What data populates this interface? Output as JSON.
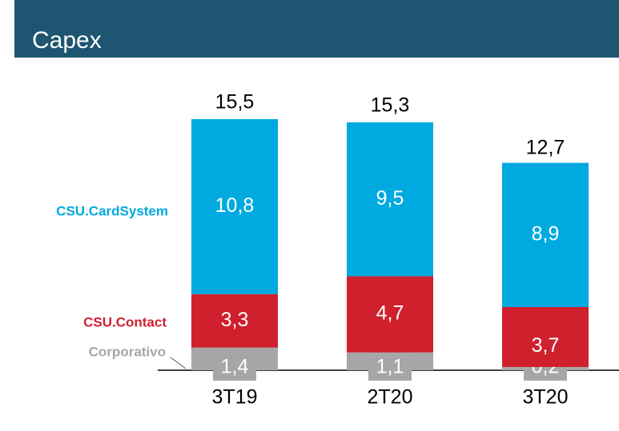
{
  "chart_data": {
    "type": "stacked_bar",
    "title": "Capex",
    "categories": [
      "3T19",
      "2T20",
      "3T20"
    ],
    "series": [
      {
        "name": "Corporativo",
        "color": "#a6a6a6",
        "values": [
          1.4,
          1.1,
          0.2
        ],
        "value_labels": [
          "1,4",
          "1,1",
          "0,2"
        ]
      },
      {
        "name": "CSU.Contact",
        "color": "#d0202e",
        "values": [
          3.3,
          4.7,
          3.7
        ],
        "value_labels": [
          "3,3",
          "4,7",
          "3,7"
        ]
      },
      {
        "name": "CSU.CardSystem",
        "color": "#00a9e0",
        "values": [
          10.8,
          9.5,
          8.9
        ],
        "value_labels": [
          "10,8",
          "9,5",
          "8,9"
        ]
      }
    ],
    "totals": [
      15.5,
      15.3,
      12.7
    ],
    "total_labels": [
      "15,5",
      "15,3",
      "12,7"
    ],
    "ylim": [
      0,
      16
    ]
  }
}
